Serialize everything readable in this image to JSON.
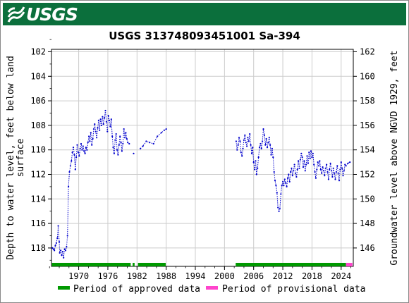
{
  "header": {
    "logo_text": "USGS",
    "brand_color": "#0b6f3c"
  },
  "chart_data": {
    "type": "scatter",
    "title": "USGS 313748093451001 Sa-394",
    "ylabel": "Depth to water level, feet below land surface",
    "ylabel_lines": [
      "Depth to water level, feet below land",
      "surface"
    ],
    "ylabel_right": "Groundwater level above NGVD 1929, feet",
    "xlim": [
      1964.4,
      2026.5
    ],
    "ylim": [
      119.5,
      101.8
    ],
    "y_inverted": true,
    "x_ticks": [
      1970,
      1976,
      1982,
      1988,
      1994,
      2000,
      2006,
      2012,
      2018,
      2024
    ],
    "x_tick_labels": [
      "1970",
      "1976",
      "1982",
      "1988",
      "1994",
      "2000",
      "2006",
      "2012",
      "2018",
      "2024"
    ],
    "y_ticks": [
      102,
      104,
      106,
      108,
      110,
      112,
      114,
      116,
      118
    ],
    "y_tick_labels": [
      "102",
      "104",
      "106",
      "108",
      "110",
      "112",
      "114",
      "116",
      "118"
    ],
    "y2_ticks": [
      146,
      148,
      150,
      152,
      154,
      156,
      158,
      160,
      162
    ],
    "y2_tick_labels": [
      "146",
      "148",
      "150",
      "152",
      "154",
      "156",
      "158",
      "160",
      "162"
    ],
    "datum_offset": 264.0,
    "grid": true,
    "series": [
      {
        "name": "",
        "color": "#0000cc",
        "style": "dotted-with-points",
        "segments": [
          [
            [
              1964.6,
              118.0
            ],
            [
              1964.8,
              118.1
            ],
            [
              1965.0,
              118.2
            ],
            [
              1965.2,
              117.8
            ],
            [
              1965.4,
              117.6
            ],
            [
              1965.6,
              117.2
            ],
            [
              1965.8,
              116.2
            ],
            [
              1966.0,
              117.5
            ],
            [
              1966.1,
              118.4
            ],
            [
              1966.3,
              118.2
            ],
            [
              1966.5,
              118.6
            ],
            [
              1966.7,
              118.3
            ],
            [
              1966.9,
              118.8
            ],
            [
              1967.1,
              118.1
            ],
            [
              1967.3,
              118.2
            ],
            [
              1967.5,
              117.9
            ],
            [
              1967.7,
              117.0
            ],
            [
              1967.9,
              113.0
            ],
            [
              1968.1,
              111.8
            ],
            [
              1968.3,
              111.3
            ],
            [
              1968.5,
              110.9
            ],
            [
              1968.7,
              110.2
            ],
            [
              1968.9,
              109.8
            ],
            [
              1969.1,
              110.4
            ],
            [
              1969.3,
              111.6
            ],
            [
              1969.5,
              110.6
            ],
            [
              1969.7,
              109.6
            ],
            [
              1969.9,
              110.2
            ],
            [
              1970.1,
              110.5
            ],
            [
              1970.3,
              109.9
            ],
            [
              1970.5,
              109.5
            ],
            [
              1970.7,
              110.0
            ],
            [
              1970.9,
              109.7
            ],
            [
              1971.1,
              110.1
            ],
            [
              1971.3,
              110.3
            ],
            [
              1971.5,
              109.8
            ],
            [
              1971.7,
              110.0
            ],
            [
              1971.9,
              109.4
            ],
            [
              1972.1,
              108.9
            ],
            [
              1972.3,
              109.3
            ],
            [
              1972.5,
              108.6
            ],
            [
              1972.7,
              109.6
            ],
            [
              1972.9,
              109.1
            ],
            [
              1973.1,
              108.3
            ],
            [
              1973.3,
              107.9
            ],
            [
              1973.5,
              108.5
            ],
            [
              1973.7,
              109.0
            ],
            [
              1973.9,
              108.2
            ],
            [
              1974.1,
              107.6
            ],
            [
              1974.3,
              108.4
            ],
            [
              1974.5,
              107.5
            ],
            [
              1974.7,
              108.0
            ],
            [
              1974.9,
              107.3
            ],
            [
              1975.1,
              107.9
            ],
            [
              1975.3,
              107.4
            ],
            [
              1975.5,
              106.8
            ],
            [
              1975.7,
              107.7
            ],
            [
              1975.9,
              108.5
            ],
            [
              1976.1,
              107.2
            ],
            [
              1976.3,
              107.6
            ],
            [
              1976.5,
              108.1
            ],
            [
              1976.7,
              107.5
            ],
            [
              1976.9,
              108.9
            ],
            [
              1977.1,
              109.8
            ],
            [
              1977.3,
              110.3
            ],
            [
              1977.5,
              109.2
            ],
            [
              1977.7,
              108.7
            ],
            [
              1977.9,
              110.0
            ],
            [
              1978.1,
              110.4
            ],
            [
              1978.3,
              109.6
            ],
            [
              1978.5,
              108.9
            ],
            [
              1978.7,
              109.4
            ],
            [
              1978.9,
              110.1
            ],
            [
              1979.1,
              109.5
            ],
            [
              1979.3,
              108.3
            ],
            [
              1979.5,
              109.0
            ],
            [
              1979.7,
              108.6
            ],
            [
              1979.9,
              109.1
            ],
            [
              1980.1,
              109.4
            ],
            [
              1980.4,
              109.5
            ]
          ],
          [
            [
              1981.3,
              110.3
            ]
          ],
          [
            [
              1982.7,
              109.9
            ],
            [
              1983.2,
              109.7
            ],
            [
              1983.9,
              109.3
            ],
            [
              1984.6,
              109.4
            ],
            [
              1985.4,
              109.5
            ],
            [
              1986.2,
              108.9
            ],
            [
              1987.0,
              108.6
            ],
            [
              1987.6,
              108.4
            ],
            [
              1988.0,
              108.3
            ]
          ],
          [
            [
              2002.4,
              109.3
            ],
            [
              2002.6,
              110.0
            ],
            [
              2002.8,
              109.6
            ],
            [
              2003.0,
              109.0
            ],
            [
              2003.2,
              109.3
            ],
            [
              2003.4,
              110.2
            ],
            [
              2003.6,
              110.5
            ],
            [
              2003.8,
              109.9
            ],
            [
              2004.0,
              109.2
            ],
            [
              2004.2,
              108.8
            ],
            [
              2004.4,
              109.4
            ],
            [
              2004.6,
              109.7
            ],
            [
              2004.8,
              109.0
            ],
            [
              2005.0,
              109.3
            ],
            [
              2005.2,
              108.7
            ],
            [
              2005.4,
              109.6
            ],
            [
              2005.6,
              110.3
            ],
            [
              2005.8,
              109.8
            ],
            [
              2006.0,
              111.0
            ],
            [
              2006.2,
              111.6
            ],
            [
              2006.4,
              110.9
            ],
            [
              2006.6,
              112.0
            ],
            [
              2006.8,
              111.5
            ],
            [
              2007.0,
              110.6
            ],
            [
              2007.2,
              109.8
            ],
            [
              2007.4,
              109.5
            ],
            [
              2007.6,
              109.9
            ],
            [
              2007.8,
              109.3
            ],
            [
              2008.0,
              108.3
            ],
            [
              2008.2,
              108.8
            ],
            [
              2008.4,
              109.6
            ],
            [
              2008.6,
              109.1
            ],
            [
              2008.8,
              109.8
            ],
            [
              2009.0,
              109.4
            ],
            [
              2009.2,
              109.0
            ],
            [
              2009.4,
              109.6
            ],
            [
              2009.6,
              110.4
            ],
            [
              2009.8,
              109.9
            ],
            [
              2010.0,
              110.6
            ],
            [
              2010.2,
              111.8
            ],
            [
              2010.4,
              112.5
            ],
            [
              2010.6,
              112.9
            ],
            [
              2010.8,
              113.5
            ],
            [
              2011.0,
              114.7
            ],
            [
              2011.2,
              115.0
            ],
            [
              2011.4,
              114.8
            ],
            [
              2011.6,
              113.6
            ],
            [
              2011.8,
              112.9
            ],
            [
              2012.0,
              112.6
            ],
            [
              2012.2,
              112.9
            ],
            [
              2012.4,
              112.4
            ],
            [
              2012.6,
              112.7
            ],
            [
              2012.8,
              113.0
            ],
            [
              2013.0,
              112.3
            ],
            [
              2013.2,
              112.0
            ],
            [
              2013.4,
              112.6
            ],
            [
              2013.6,
              111.8
            ],
            [
              2013.8,
              111.5
            ],
            [
              2014.0,
              112.1
            ],
            [
              2014.2,
              111.7
            ],
            [
              2014.4,
              111.2
            ],
            [
              2014.6,
              111.9
            ],
            [
              2014.8,
              112.2
            ],
            [
              2015.0,
              111.6
            ],
            [
              2015.2,
              110.9
            ],
            [
              2015.4,
              111.5
            ],
            [
              2015.6,
              110.8
            ],
            [
              2015.8,
              110.3
            ],
            [
              2016.0,
              110.6
            ],
            [
              2016.2,
              111.4
            ],
            [
              2016.4,
              110.9
            ],
            [
              2016.6,
              111.7
            ],
            [
              2016.8,
              111.2
            ],
            [
              2017.0,
              110.5
            ],
            [
              2017.2,
              111.1
            ],
            [
              2017.4,
              110.2
            ],
            [
              2017.6,
              110.7
            ],
            [
              2017.8,
              110.1
            ],
            [
              2018.0,
              110.6
            ],
            [
              2018.2,
              110.3
            ],
            [
              2018.4,
              111.2
            ],
            [
              2018.6,
              111.8
            ],
            [
              2018.8,
              112.3
            ],
            [
              2019.0,
              111.6
            ],
            [
              2019.2,
              111.0
            ],
            [
              2019.4,
              111.3
            ],
            [
              2019.6,
              110.9
            ],
            [
              2019.8,
              111.6
            ],
            [
              2020.0,
              111.9
            ],
            [
              2020.2,
              111.4
            ],
            [
              2020.4,
              111.7
            ],
            [
              2020.6,
              112.1
            ],
            [
              2020.8,
              111.5
            ],
            [
              2021.0,
              111.2
            ],
            [
              2021.2,
              111.8
            ],
            [
              2021.4,
              112.4
            ],
            [
              2021.6,
              111.6
            ],
            [
              2021.8,
              111.1
            ],
            [
              2022.0,
              111.7
            ],
            [
              2022.2,
              112.2
            ],
            [
              2022.4,
              111.5
            ],
            [
              2022.6,
              111.9
            ],
            [
              2022.8,
              112.4
            ],
            [
              2023.0,
              111.8
            ],
            [
              2023.2,
              111.3
            ],
            [
              2023.4,
              111.9
            ],
            [
              2023.6,
              112.5
            ],
            [
              2023.8,
              111.6
            ],
            [
              2024.0,
              111.0
            ],
            [
              2024.2,
              111.5
            ],
            [
              2024.4,
              112.1
            ],
            [
              2024.6,
              111.7
            ],
            [
              2024.8,
              111.2
            ],
            [
              2025.0,
              111.3
            ],
            [
              2025.4,
              111.1
            ],
            [
              2025.8,
              111.0
            ]
          ]
        ]
      }
    ],
    "periods": {
      "approved_color": "#009900",
      "provisional_color": "#ff44cc",
      "approved": [
        [
          1964.5,
          1980.7
        ],
        [
          1981.1,
          1981.5
        ],
        [
          1982.2,
          1987.9
        ],
        [
          2002.3,
          2025.0
        ]
      ],
      "provisional": [
        [
          2025.0,
          2026.3
        ]
      ]
    },
    "legend": [
      {
        "label": "Period of approved data",
        "color": "#009900"
      },
      {
        "label": "Period of provisional data",
        "color": "#ff44cc"
      }
    ],
    "legend_placement": "bottom"
  }
}
